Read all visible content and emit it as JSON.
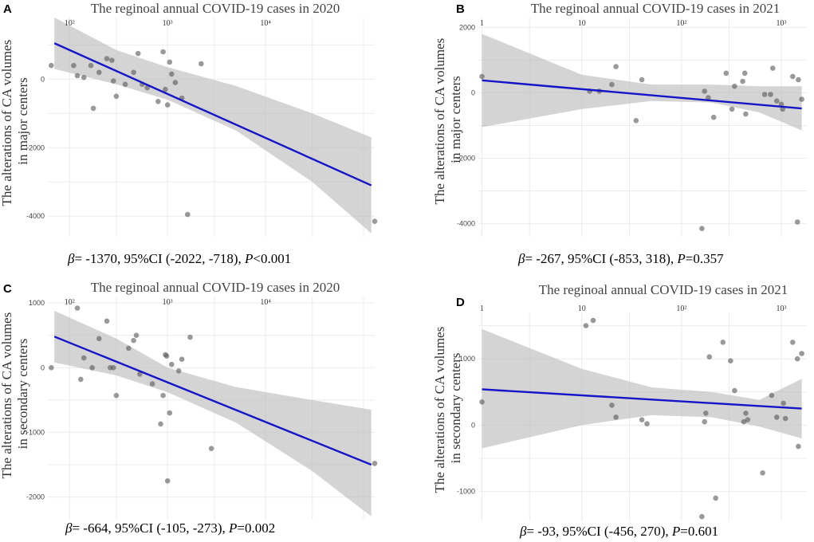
{
  "chart_data": [
    {
      "type": "scatter",
      "panel_label": "A",
      "title": "The reginoal annual COVID-19 cases in 2020",
      "ylabel_lines": [
        "The alterations of CA volumes",
        "in major centers"
      ],
      "x_scale": "log10",
      "x_ticks": [
        {
          "value": 100,
          "label": "10²"
        },
        {
          "value": 1000,
          "label": "10³"
        },
        {
          "value": 10000,
          "label": "10⁴"
        }
      ],
      "xlim": [
        60,
        130000
      ],
      "ylim": [
        -4600,
        1800
      ],
      "y_ticks": [
        0,
        -2000,
        -4000
      ],
      "points": [
        {
          "x": 65,
          "y": 400
        },
        {
          "x": 110,
          "y": 400
        },
        {
          "x": 120,
          "y": 100
        },
        {
          "x": 140,
          "y": 50
        },
        {
          "x": 165,
          "y": 400
        },
        {
          "x": 175,
          "y": -850
        },
        {
          "x": 200,
          "y": 200
        },
        {
          "x": 240,
          "y": 600
        },
        {
          "x": 270,
          "y": 550
        },
        {
          "x": 280,
          "y": -50
        },
        {
          "x": 300,
          "y": -500
        },
        {
          "x": 370,
          "y": -150
        },
        {
          "x": 450,
          "y": 200
        },
        {
          "x": 500,
          "y": 750
        },
        {
          "x": 550,
          "y": -150
        },
        {
          "x": 620,
          "y": -250
        },
        {
          "x": 800,
          "y": -650
        },
        {
          "x": 900,
          "y": 800
        },
        {
          "x": 950,
          "y": -300
        },
        {
          "x": 1000,
          "y": -750
        },
        {
          "x": 1050,
          "y": 500
        },
        {
          "x": 1100,
          "y": 150
        },
        {
          "x": 1200,
          "y": -100
        },
        {
          "x": 1400,
          "y": -550
        },
        {
          "x": 1600,
          "y": -3950
        },
        {
          "x": 2200,
          "y": 450
        },
        {
          "x": 130000,
          "y": -4150
        }
      ],
      "fit_line": {
        "x": [
          70,
          120000
        ],
        "y": [
          1050,
          -3100
        ]
      },
      "ci_band": {
        "x": [
          70,
          300,
          1000,
          5000,
          30000,
          120000
        ],
        "lower": [
          300,
          -150,
          -600,
          -1500,
          -3000,
          -4500
        ],
        "upper": [
          1800,
          850,
          350,
          -200,
          -1000,
          -1700
        ]
      },
      "annotation": {
        "beta_symbol": "β",
        "text": "= -1370, 95%CI (-2022, -718), ",
        "p_symbol": "P",
        "p_text": "<0.001"
      }
    },
    {
      "type": "scatter",
      "panel_label": "B",
      "title": "The reginoal annual COVID-19 cases in 2021",
      "ylabel_lines": [
        "The alterations of CA volumes",
        "in major centers"
      ],
      "x_scale": "log10",
      "x_ticks": [
        {
          "value": 1,
          "label": "1"
        },
        {
          "value": 10,
          "label": "10"
        },
        {
          "value": 100,
          "label": "10²"
        },
        {
          "value": 1000,
          "label": "10³"
        }
      ],
      "xlim": [
        0.92,
        1800
      ],
      "ylim": [
        -4400,
        2300
      ],
      "y_ticks": [
        2000,
        0,
        -2000,
        -4000
      ],
      "points": [
        {
          "x": 1,
          "y": 500
        },
        {
          "x": 12,
          "y": 50
        },
        {
          "x": 15,
          "y": 50
        },
        {
          "x": 20,
          "y": 250
        },
        {
          "x": 22,
          "y": 800
        },
        {
          "x": 35,
          "y": -850
        },
        {
          "x": 40,
          "y": 400
        },
        {
          "x": 160,
          "y": -4150
        },
        {
          "x": 170,
          "y": 50
        },
        {
          "x": 185,
          "y": -150
        },
        {
          "x": 210,
          "y": -750
        },
        {
          "x": 280,
          "y": 600
        },
        {
          "x": 320,
          "y": -500
        },
        {
          "x": 340,
          "y": 200
        },
        {
          "x": 410,
          "y": 350
        },
        {
          "x": 430,
          "y": 600
        },
        {
          "x": 440,
          "y": -650
        },
        {
          "x": 680,
          "y": -50
        },
        {
          "x": 780,
          "y": -50
        },
        {
          "x": 820,
          "y": 750
        },
        {
          "x": 900,
          "y": -250
        },
        {
          "x": 1000,
          "y": -350
        },
        {
          "x": 1030,
          "y": -500
        },
        {
          "x": 1300,
          "y": 500
        },
        {
          "x": 1450,
          "y": -3950
        },
        {
          "x": 1480,
          "y": 400
        },
        {
          "x": 1600,
          "y": -200
        }
      ],
      "fit_line": {
        "x": [
          1,
          1600
        ],
        "y": [
          380,
          -480
        ]
      },
      "ci_band": {
        "x": [
          1,
          10,
          50,
          200,
          600,
          1600
        ],
        "lower": [
          -1050,
          -500,
          -250,
          -300,
          -600,
          -1150
        ],
        "upper": [
          1800,
          550,
          250,
          250,
          200,
          200
        ]
      },
      "annotation": {
        "beta_symbol": "β",
        "text": "= -267, 95%CI (-853, 318), ",
        "p_symbol": "P",
        "p_text": "=0.357"
      }
    },
    {
      "type": "scatter",
      "panel_label": "C",
      "title": "The reginoal annual COVID-19 cases in 2020",
      "ylabel_lines": [
        "The alterations of CA volumes",
        "in secondary centers"
      ],
      "x_scale": "log10",
      "x_ticks": [
        {
          "value": 100,
          "label": "10²"
        },
        {
          "value": 1000,
          "label": "10³"
        },
        {
          "value": 10000,
          "label": "10⁴"
        }
      ],
      "xlim": [
        60,
        130000
      ],
      "ylim": [
        -2350,
        1100
      ],
      "y_ticks": [
        1000,
        0,
        -1000,
        -2000
      ],
      "points": [
        {
          "x": 65,
          "y": 0
        },
        {
          "x": 120,
          "y": 920
        },
        {
          "x": 130,
          "y": -180
        },
        {
          "x": 140,
          "y": 150
        },
        {
          "x": 170,
          "y": 0
        },
        {
          "x": 200,
          "y": 450
        },
        {
          "x": 240,
          "y": 720
        },
        {
          "x": 260,
          "y": 0
        },
        {
          "x": 280,
          "y": 0
        },
        {
          "x": 300,
          "y": -430
        },
        {
          "x": 400,
          "y": 300
        },
        {
          "x": 450,
          "y": 420
        },
        {
          "x": 480,
          "y": 500
        },
        {
          "x": 520,
          "y": -100
        },
        {
          "x": 700,
          "y": -250
        },
        {
          "x": 850,
          "y": -870
        },
        {
          "x": 900,
          "y": -430
        },
        {
          "x": 950,
          "y": 200
        },
        {
          "x": 980,
          "y": 180
        },
        {
          "x": 1000,
          "y": -1750
        },
        {
          "x": 1050,
          "y": -700
        },
        {
          "x": 1100,
          "y": 50
        },
        {
          "x": 1300,
          "y": -50
        },
        {
          "x": 1400,
          "y": 130
        },
        {
          "x": 1700,
          "y": 470
        },
        {
          "x": 2800,
          "y": -1250
        },
        {
          "x": 130000,
          "y": -1480
        }
      ],
      "fit_line": {
        "x": [
          70,
          120000
        ],
        "y": [
          480,
          -1500
        ]
      },
      "ci_band": {
        "x": [
          70,
          300,
          1000,
          5000,
          30000,
          120000
        ],
        "lower": [
          80,
          -120,
          -380,
          -850,
          -1600,
          -2300
        ],
        "upper": [
          880,
          450,
          0,
          -300,
          -500,
          -650
        ]
      },
      "annotation": {
        "beta_symbol": "β",
        "text": "= -664, 95%CI (-105, -273), ",
        "p_symbol": "P",
        "p_text": "=0.002"
      }
    },
    {
      "type": "scatter",
      "panel_label": "D",
      "title": "The reginoal annual COVID-19 cases in 2021",
      "ylabel_lines": [
        "The alterations of CA volumes",
        "in secondary centers"
      ],
      "x_scale": "log10",
      "x_ticks": [
        {
          "value": 1,
          "label": "1"
        },
        {
          "value": 10,
          "label": "10"
        },
        {
          "value": 100,
          "label": "10²"
        },
        {
          "value": 1000,
          "label": "10³"
        }
      ],
      "xlim": [
        0.92,
        1800
      ],
      "ylim": [
        -1450,
        1700
      ],
      "y_ticks": [
        1000,
        0,
        -1000
      ],
      "points": [
        {
          "x": 1,
          "y": 350
        },
        {
          "x": 11,
          "y": 1500
        },
        {
          "x": 13,
          "y": 1580
        },
        {
          "x": 20,
          "y": 300
        },
        {
          "x": 22,
          "y": 120
        },
        {
          "x": 40,
          "y": 80
        },
        {
          "x": 45,
          "y": 20
        },
        {
          "x": 160,
          "y": -1380
        },
        {
          "x": 170,
          "y": 50
        },
        {
          "x": 175,
          "y": 180
        },
        {
          "x": 190,
          "y": 1030
        },
        {
          "x": 220,
          "y": -1100
        },
        {
          "x": 260,
          "y": 1250
        },
        {
          "x": 310,
          "y": 970
        },
        {
          "x": 340,
          "y": 520
        },
        {
          "x": 420,
          "y": 50
        },
        {
          "x": 440,
          "y": 180
        },
        {
          "x": 460,
          "y": 80
        },
        {
          "x": 650,
          "y": -720
        },
        {
          "x": 800,
          "y": 450
        },
        {
          "x": 900,
          "y": 120
        },
        {
          "x": 1050,
          "y": 330
        },
        {
          "x": 1100,
          "y": 100
        },
        {
          "x": 1300,
          "y": 1250
        },
        {
          "x": 1450,
          "y": 1000
        },
        {
          "x": 1480,
          "y": -320
        },
        {
          "x": 1600,
          "y": 1080
        }
      ],
      "fit_line": {
        "x": [
          1,
          1600
        ],
        "y": [
          540,
          250
        ]
      },
      "ci_band": {
        "x": [
          1,
          10,
          50,
          200,
          600,
          1600
        ],
        "lower": [
          -350,
          0,
          150,
          120,
          -20,
          -200
        ],
        "upper": [
          1450,
          850,
          570,
          500,
          380,
          700
        ]
      },
      "annotation": {
        "beta_symbol": "β",
        "text": "= -93, 95%CI (-456, 270), ",
        "p_symbol": "P",
        "p_text": "=0.601"
      }
    }
  ]
}
